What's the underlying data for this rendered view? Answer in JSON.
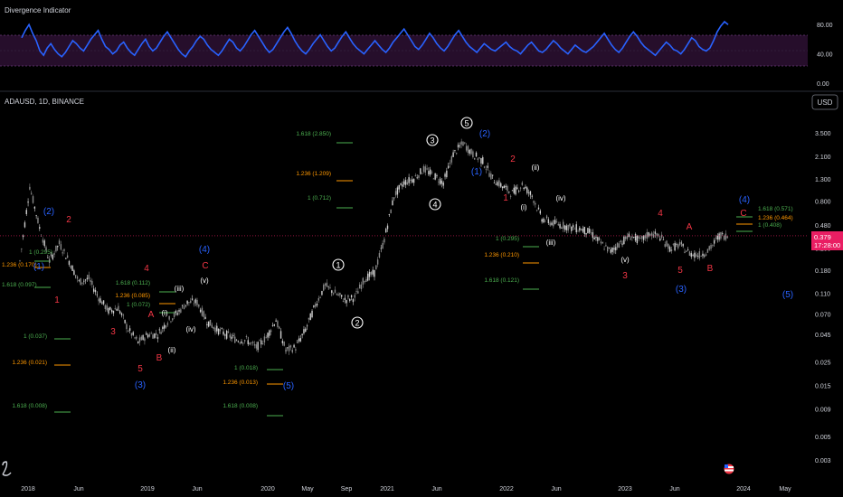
{
  "indicator": {
    "title": "Divergence Indicator",
    "y_ticks": [
      "80.00",
      "40.00",
      "0.00"
    ],
    "band_upper": 70,
    "band_lower": 30,
    "line_color": "#2962ff",
    "values": [
      62,
      72,
      80,
      68,
      58,
      44,
      38,
      48,
      54,
      46,
      40,
      36,
      42,
      50,
      58,
      54,
      48,
      44,
      52,
      60,
      66,
      72,
      60,
      50,
      46,
      40,
      44,
      52,
      56,
      48,
      42,
      38,
      46,
      54,
      60,
      50,
      44,
      48,
      56,
      64,
      70,
      62,
      54,
      46,
      40,
      36,
      44,
      50,
      58,
      64,
      60,
      52,
      46,
      42,
      38,
      44,
      52,
      60,
      56,
      48,
      44,
      50,
      58,
      66,
      72,
      64,
      56,
      48,
      42,
      46,
      54,
      62,
      70,
      76,
      68,
      58,
      50,
      44,
      40,
      46,
      54,
      60,
      66,
      58,
      50,
      44,
      48,
      56,
      64,
      70,
      62,
      54,
      48,
      44,
      40,
      46,
      52,
      58,
      52,
      46,
      42,
      48,
      56,
      62,
      68,
      74,
      66,
      58,
      50,
      46,
      52,
      60,
      68,
      62,
      54,
      48,
      44,
      50,
      58,
      66,
      72,
      64,
      56,
      50,
      46,
      42,
      48,
      54,
      50,
      46,
      44,
      48,
      52,
      56,
      50,
      46,
      44,
      40,
      46,
      52,
      56,
      50,
      44,
      42,
      46,
      52,
      58,
      54,
      48,
      44,
      40,
      46,
      52,
      48,
      44,
      42,
      46,
      50,
      56,
      62,
      68,
      60,
      52,
      46,
      42,
      48,
      56,
      64,
      70,
      64,
      56,
      50,
      46,
      42,
      38,
      44,
      50,
      56,
      52,
      46,
      44,
      40,
      46,
      54,
      62,
      58,
      50,
      46,
      44,
      48,
      58,
      70,
      78,
      84,
      80
    ]
  },
  "price_chart": {
    "symbol_label": "ADAUSD, 1D, BINANCE",
    "currency": "USD",
    "current_price": "0.379",
    "countdown": "17:28:00",
    "price_line_color": "#e91e63",
    "y_ticks": [
      "3.500",
      "2.100",
      "1.300",
      "0.800",
      "0.480",
      "0.290",
      "0.180",
      "0.110",
      "0.070",
      "0.045",
      "0.025",
      "0.015",
      "0.009",
      "0.005",
      "0.003"
    ],
    "x_ticks": [
      "2018",
      "Jun",
      "2019",
      "Jun",
      "2020",
      "May",
      "Sep",
      "2021",
      "Jun",
      "2022",
      "Jun",
      "2023",
      "Jun",
      "2024",
      "May"
    ]
  },
  "chart_data": {
    "type": "line",
    "title": "ADAUSD, 1D, BINANCE",
    "xlabel": "",
    "ylabel": "USD",
    "y_scale": "log",
    "ylim": [
      0.002,
      5.5
    ],
    "x": [
      "2017-12",
      "2018-01",
      "2018-02",
      "2018-03",
      "2018-04",
      "2018-05",
      "2018-06",
      "2018-07",
      "2018-08",
      "2018-09",
      "2018-10",
      "2018-11",
      "2018-12",
      "2019-01",
      "2019-02",
      "2019-03",
      "2019-04",
      "2019-05",
      "2019-06",
      "2019-07",
      "2019-08",
      "2019-09",
      "2019-10",
      "2019-11",
      "2019-12",
      "2020-01",
      "2020-02",
      "2020-03",
      "2020-04",
      "2020-05",
      "2020-06",
      "2020-07",
      "2020-08",
      "2020-09",
      "2020-10",
      "2020-11",
      "2020-12",
      "2021-01",
      "2021-02",
      "2021-03",
      "2021-04",
      "2021-05",
      "2021-06",
      "2021-07",
      "2021-08",
      "2021-09",
      "2021-10",
      "2021-11",
      "2021-12",
      "2022-01",
      "2022-02",
      "2022-03",
      "2022-04",
      "2022-05",
      "2022-06",
      "2022-07",
      "2022-08",
      "2022-09",
      "2022-10",
      "2022-11",
      "2022-12",
      "2023-01",
      "2023-02",
      "2023-03",
      "2023-04",
      "2023-05",
      "2023-06",
      "2023-07",
      "2023-08",
      "2023-09",
      "2023-10",
      "2023-11",
      "2023-12"
    ],
    "series": [
      {
        "values": [
          0.22,
          1.1,
          0.45,
          0.22,
          0.32,
          0.22,
          0.14,
          0.15,
          0.1,
          0.075,
          0.08,
          0.05,
          0.038,
          0.045,
          0.045,
          0.06,
          0.072,
          0.09,
          0.09,
          0.06,
          0.05,
          0.045,
          0.04,
          0.04,
          0.034,
          0.042,
          0.062,
          0.032,
          0.034,
          0.05,
          0.085,
          0.13,
          0.11,
          0.095,
          0.1,
          0.15,
          0.17,
          0.35,
          0.9,
          1.2,
          1.3,
          1.6,
          1.4,
          1.2,
          2.2,
          2.8,
          2.2,
          1.9,
          1.3,
          1.1,
          0.95,
          1.15,
          0.9,
          0.55,
          0.5,
          0.48,
          0.45,
          0.44,
          0.4,
          0.32,
          0.27,
          0.33,
          0.38,
          0.34,
          0.4,
          0.37,
          0.29,
          0.31,
          0.26,
          0.25,
          0.28,
          0.38,
          0.379
        ]
      }
    ]
  },
  "wave_labels": [
    {
      "text": "(1)",
      "color": "blue"
    },
    {
      "text": "(2)",
      "color": "blue"
    },
    {
      "text": "(3)",
      "color": "blue"
    },
    {
      "text": "(4)",
      "color": "blue"
    },
    {
      "text": "(5)",
      "color": "blue"
    },
    {
      "text": "(1)",
      "color": "blue"
    },
    {
      "text": "(2)",
      "color": "blue"
    },
    {
      "text": "(3)",
      "color": "blue"
    },
    {
      "text": "(4)",
      "color": "blue"
    },
    {
      "text": "(5)",
      "color": "blue"
    },
    {
      "text": "1",
      "color": "red"
    },
    {
      "text": "2",
      "color": "red"
    },
    {
      "text": "3",
      "color": "red"
    },
    {
      "text": "4",
      "color": "red"
    },
    {
      "text": "5",
      "color": "red"
    },
    {
      "text": "A",
      "color": "red"
    },
    {
      "text": "B",
      "color": "red"
    },
    {
      "text": "C",
      "color": "red"
    },
    {
      "text": "1",
      "color": "red"
    },
    {
      "text": "2",
      "color": "red"
    },
    {
      "text": "3",
      "color": "red"
    },
    {
      "text": "4",
      "color": "red"
    },
    {
      "text": "5",
      "color": "red"
    },
    {
      "text": "A",
      "color": "red"
    },
    {
      "text": "B",
      "color": "red"
    },
    {
      "text": "C",
      "color": "red"
    },
    {
      "text": "(i)",
      "color": "white"
    },
    {
      "text": "(ii)",
      "color": "white"
    },
    {
      "text": "(iii)",
      "color": "white"
    },
    {
      "text": "(iv)",
      "color": "white"
    },
    {
      "text": "(v)",
      "color": "white"
    },
    {
      "text": "(i)",
      "color": "white"
    },
    {
      "text": "(ii)",
      "color": "white"
    },
    {
      "text": "(iii)",
      "color": "white"
    },
    {
      "text": "(iv)",
      "color": "white"
    },
    {
      "text": "(v)",
      "color": "white"
    },
    {
      "text": "1",
      "color": "circle"
    },
    {
      "text": "2",
      "color": "circle"
    },
    {
      "text": "3",
      "color": "circle"
    },
    {
      "text": "4",
      "color": "circle"
    },
    {
      "text": "5",
      "color": "circle"
    }
  ],
  "fib_labels": [
    {
      "text": "1 (0.295)",
      "color": "green"
    },
    {
      "text": "1.236 (0.170)",
      "color": "orange"
    },
    {
      "text": "1.618 (0.097)",
      "color": "green"
    },
    {
      "text": "1 (0.037)",
      "color": "green"
    },
    {
      "text": "1.236 (0.021)",
      "color": "orange"
    },
    {
      "text": "1.618 (0.008)",
      "color": "green"
    },
    {
      "text": "1.618 (0.112)",
      "color": "green"
    },
    {
      "text": "1.236 (0.085)",
      "color": "orange"
    },
    {
      "text": "1 (0.072)",
      "color": "green"
    },
    {
      "text": "1 (0.018)",
      "color": "green"
    },
    {
      "text": "1.236 (0.013)",
      "color": "orange"
    },
    {
      "text": "1.618 (0.008)",
      "color": "green"
    },
    {
      "text": "1.618 (2.850)",
      "color": "green"
    },
    {
      "text": "1.236 (1.209)",
      "color": "orange"
    },
    {
      "text": "1 (0.712)",
      "color": "green"
    },
    {
      "text": "1 (0.295)",
      "color": "green"
    },
    {
      "text": "1.236 (0.210)",
      "color": "orange"
    },
    {
      "text": "1.618 (0.121)",
      "color": "green"
    },
    {
      "text": "1.618 (0.571)",
      "color": "green"
    },
    {
      "text": "1.236 (0.464)",
      "color": "orange"
    },
    {
      "text": "1 (0.408)",
      "color": "green"
    }
  ],
  "colors": {
    "background": "#000000",
    "blue": "#2962ff",
    "red": "#f23645",
    "green": "#4caf50",
    "orange": "#ff9800",
    "text": "#d1d4dc",
    "candle_up": "#8a8a8a",
    "candle_down": "#d0d0d0"
  }
}
